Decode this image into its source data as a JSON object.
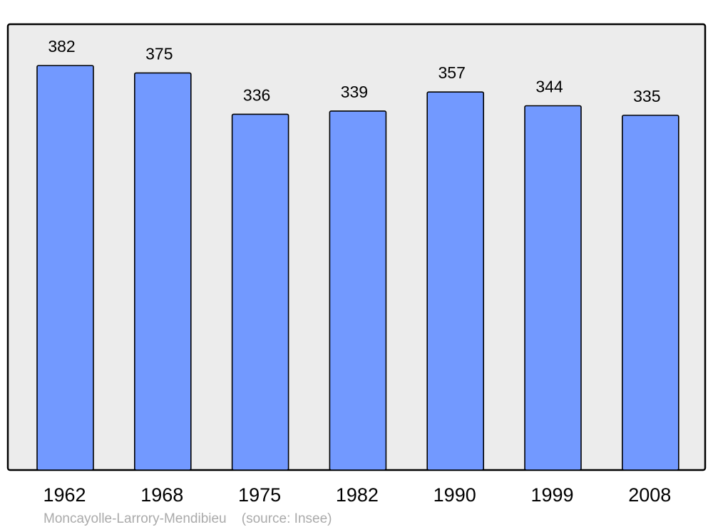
{
  "chart_data": {
    "type": "bar",
    "categories": [
      "1962",
      "1968",
      "1975",
      "1982",
      "1990",
      "1999",
      "2008"
    ],
    "values": [
      382,
      375,
      336,
      339,
      357,
      344,
      335
    ],
    "title": "",
    "xlabel": "",
    "ylabel": "",
    "ylim": [
      0,
      421
    ],
    "grid": false,
    "data_labels": true,
    "colors": {
      "bar": "#7299ff",
      "plot_background": "#ececec",
      "border": "#000000"
    }
  },
  "footer": {
    "place": "Moncayolle-Larrory-Mendibieu",
    "source": "(source: Insee)"
  }
}
